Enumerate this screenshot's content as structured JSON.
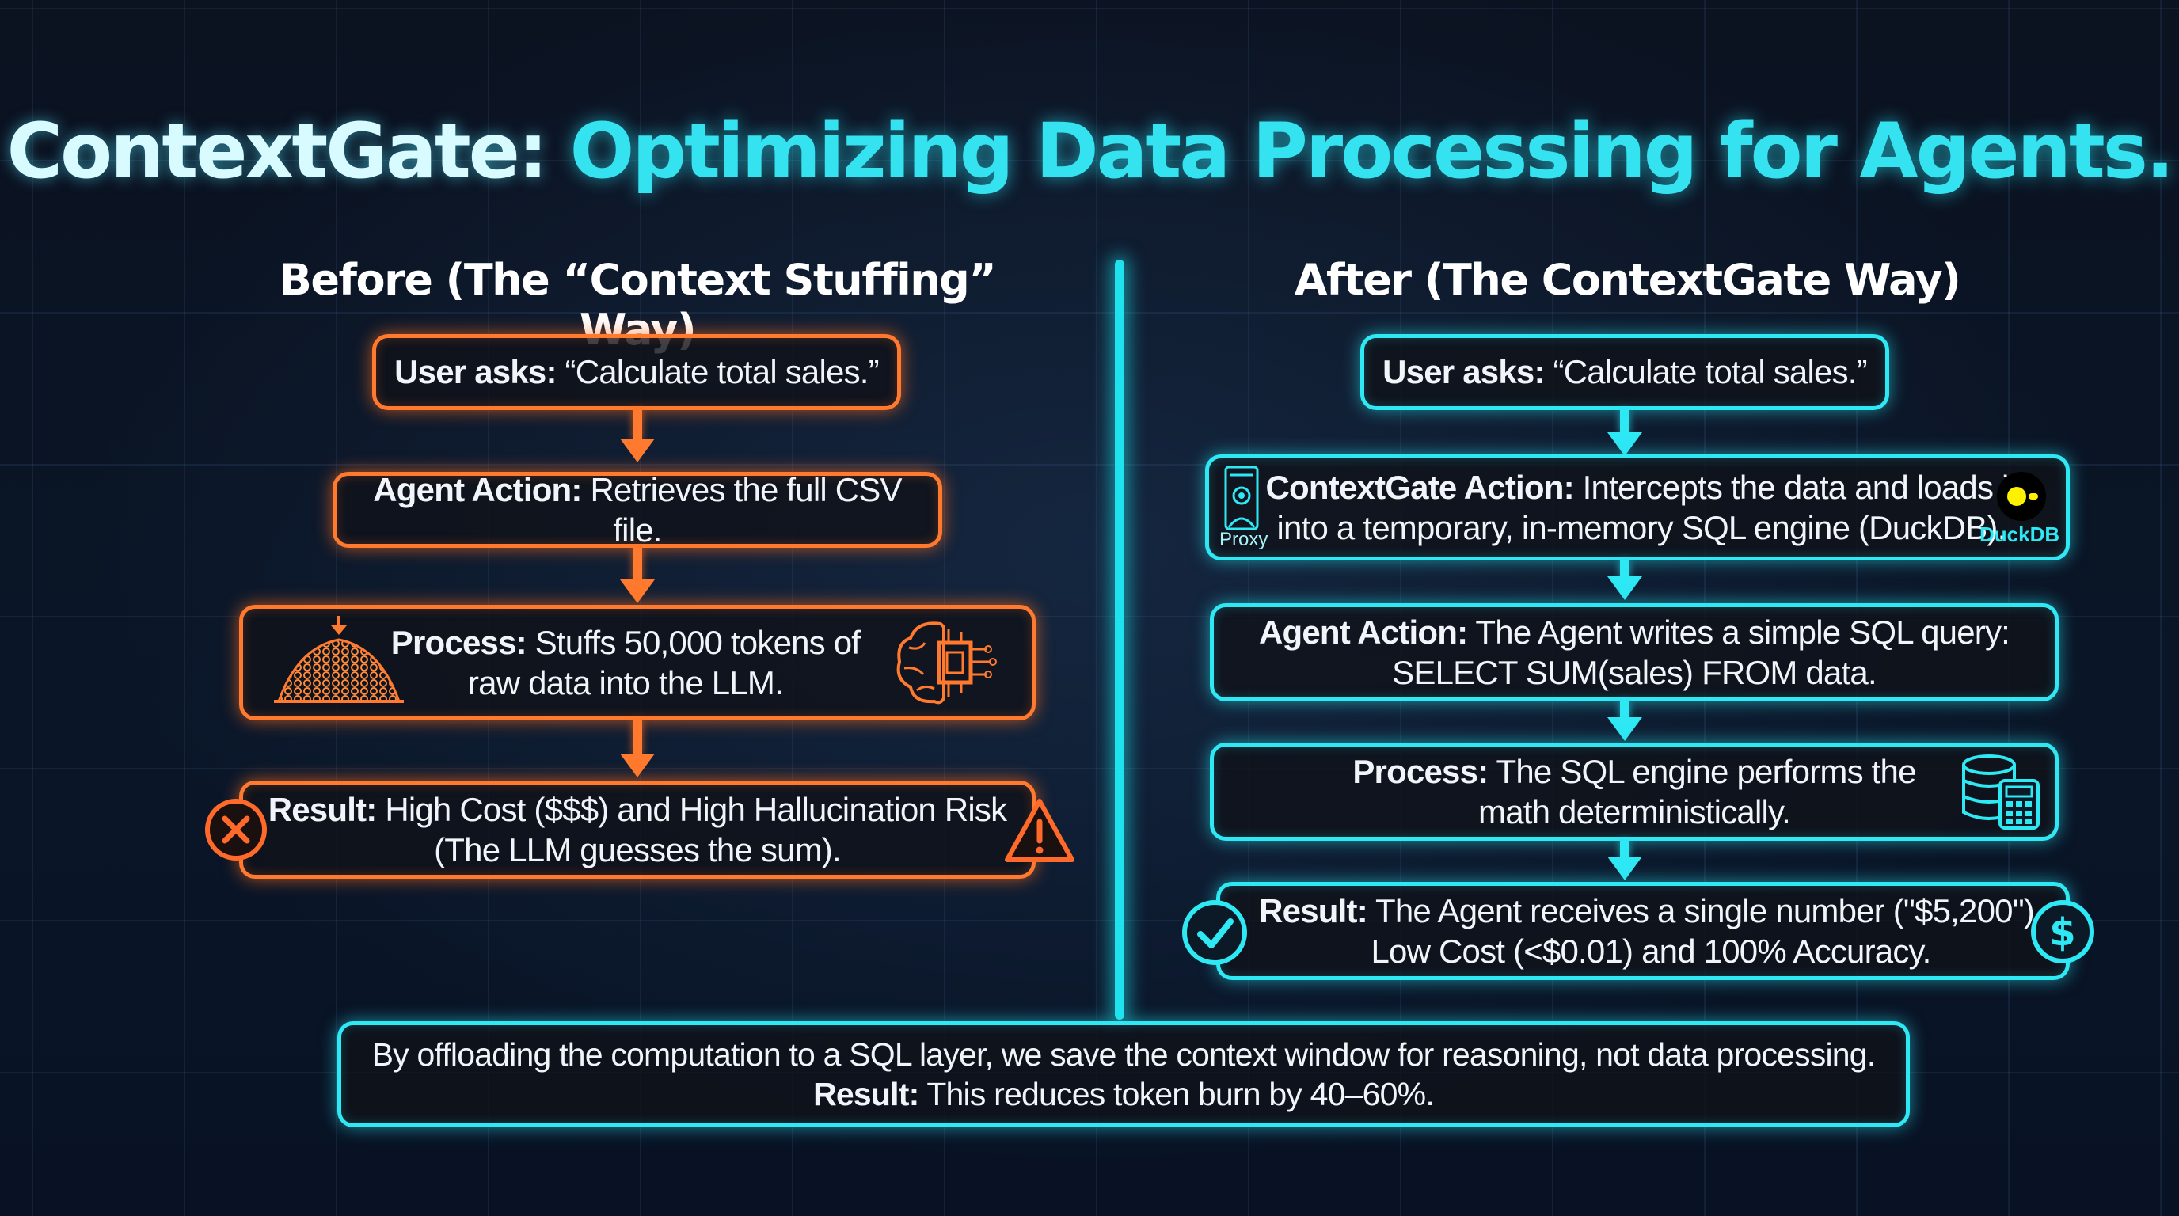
{
  "title": {
    "prefix": "ContextGate:",
    "highlight": "Optimizing Data Processing for Agents."
  },
  "before": {
    "heading": "Before (The “Context Stuffing” Way)",
    "user": {
      "label": "User asks:",
      "text": "“Calculate total sales.”"
    },
    "action": {
      "label": "Agent Action:",
      "text": "Retrieves the full CSV file."
    },
    "process": {
      "label": "Process:",
      "text1": "Stuffs 50,000 tokens of",
      "text2": "raw data into the LLM."
    },
    "result": {
      "label": "Result:",
      "text1": "High Cost ($$$) and High Hallucination Risk",
      "text2": "(The LLM guesses the sum)."
    }
  },
  "after": {
    "heading": "After (The ContextGate Way)",
    "user": {
      "label": "User asks:",
      "text": "“Calculate total sales.”"
    },
    "gate": {
      "label": "ContextGate Action:",
      "text1": "Intercepts the data and loads it",
      "text2": "into a temporary, in-memory SQL engine (DuckDB).",
      "proxy_label": "Proxy",
      "duckdb_label": "DuckDB"
    },
    "action": {
      "label": "Agent Action:",
      "text1": "The Agent writes a simple SQL query:",
      "text2": "SELECT SUM(sales) FROM data."
    },
    "process": {
      "label": "Process:",
      "text1": "The SQL engine performs the",
      "text2": "math deterministically."
    },
    "result": {
      "label": "Result:",
      "text1": "The Agent receives a single number (\"$5,200\").",
      "text2": "Low Cost (<$0.01) and 100% Accuracy."
    }
  },
  "footer": {
    "line1": "By offloading the computation to a SQL layer, we save the context window for reasoning, not data processing.",
    "label": "Result:",
    "line2": "This reduces token burn by 40–60%."
  },
  "colors": {
    "before_accent": "#ff7a2e",
    "after_accent": "#2ee8f4",
    "background": "#0b1220"
  },
  "icons": [
    "data-pile-icon",
    "brain-chip-icon",
    "error-x-icon",
    "warning-icon",
    "proxy-server-icon",
    "duckdb-logo-icon",
    "database-calculator-icon",
    "check-icon",
    "dollar-icon"
  ]
}
